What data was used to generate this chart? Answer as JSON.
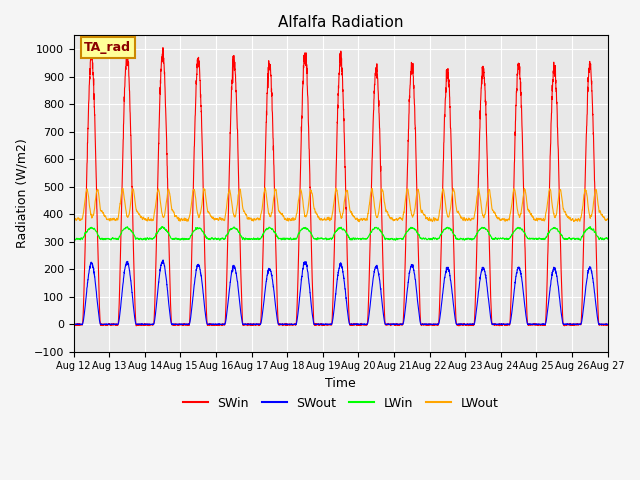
{
  "title": "Alfalfa Radiation",
  "ylabel": "Radiation (W/m2)",
  "xlabel": "Time",
  "annotation": "TA_rad",
  "ylim": [
    -100,
    1050
  ],
  "x_tick_labels": [
    "Aug 12",
    "Aug 13",
    "Aug 14",
    "Aug 15",
    "Aug 16",
    "Aug 17",
    "Aug 18",
    "Aug 19",
    "Aug 20",
    "Aug 21",
    "Aug 22",
    "Aug 23",
    "Aug 24",
    "Aug 25",
    "Aug 26",
    "Aug 27"
  ],
  "n_days": 15,
  "swin_peak": [
    970,
    980,
    985,
    960,
    960,
    945,
    980,
    960,
    930,
    945,
    920,
    930,
    940,
    935,
    940
  ],
  "swout_peak": [
    220,
    225,
    228,
    215,
    210,
    200,
    225,
    215,
    210,
    215,
    205,
    205,
    205,
    203,
    205
  ],
  "lwin_base": 310,
  "lwin_day_amp": 40,
  "lwout_base": 380,
  "lwout_day_amp": 110,
  "colors": {
    "SWin": "#ff0000",
    "SWout": "#0000ff",
    "LWin": "#00ff00",
    "LWout": "#ffa500"
  },
  "bg_color": "#e8e8e8",
  "grid_color": "#ffffff",
  "annotation_bg": "#ffff99",
  "annotation_border": "#cc8800",
  "fig_width": 6.4,
  "fig_height": 4.8,
  "dpi": 100
}
